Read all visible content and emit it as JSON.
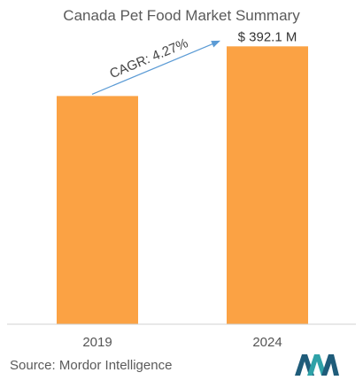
{
  "chart_data": {
    "type": "bar",
    "title": "Canada Pet Food Market Summary",
    "categories": [
      "2019",
      "2024"
    ],
    "values": [
      322,
      392.1
    ],
    "value_labels": [
      "",
      "$ 392.1 M"
    ],
    "annotation": "CAGR: 4.27%",
    "bar_color": "#FBA244",
    "arrow_color": "#5B9BD5",
    "xlabel": "",
    "ylabel": "",
    "ylim": [
      0,
      400
    ],
    "grid": false,
    "legend": "none"
  },
  "source": "Source: Mordor Intelligence",
  "logo_colors": [
    "#1F5C7A",
    "#2FA2A8"
  ]
}
